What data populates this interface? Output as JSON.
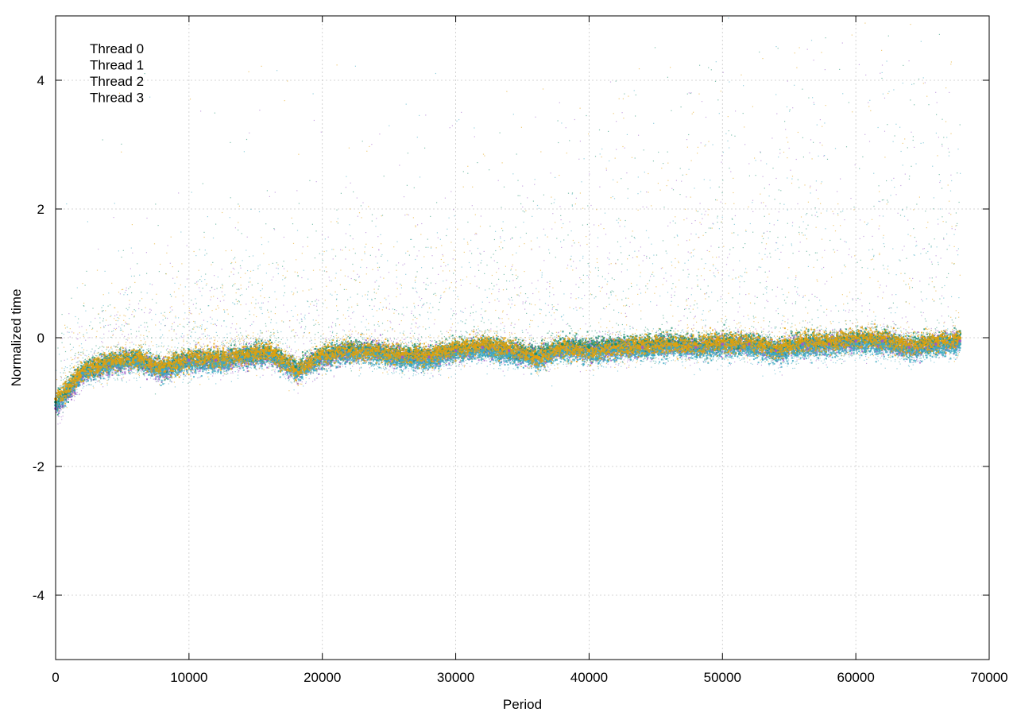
{
  "chart_data": {
    "type": "scatter",
    "title": "",
    "xlabel": "Period",
    "ylabel": "Normalized time",
    "xlim": [
      0,
      70000
    ],
    "ylim": [
      -5,
      5
    ],
    "x_ticks": [
      0,
      10000,
      20000,
      30000,
      40000,
      50000,
      60000,
      70000
    ],
    "x_tick_labels": [
      "0",
      "10000",
      "20000",
      "30000",
      "40000",
      "50000",
      "60000",
      "70000"
    ],
    "y_ticks": [
      -4,
      -2,
      0,
      2,
      4
    ],
    "y_tick_labels": [
      "-4",
      "-2",
      "0",
      "2",
      "4"
    ],
    "grid": true,
    "legend_position": "top-left",
    "series": [
      {
        "name": "Thread 0",
        "color": "#9a5cc9",
        "x": [
          0,
          2000,
          4000,
          6000,
          8000,
          10000,
          12000,
          14000,
          16000,
          18000,
          20000,
          22000,
          24000,
          26000,
          28000,
          30000,
          32000,
          34000,
          36000,
          38000,
          40000,
          42000,
          44000,
          46000,
          48000,
          50000,
          52000,
          54000,
          56000,
          58000,
          60000,
          62000,
          64000,
          66000,
          67800
        ],
        "y": [
          -1.1,
          -0.55,
          -0.4,
          -0.35,
          -0.5,
          -0.35,
          -0.35,
          -0.3,
          -0.25,
          -0.5,
          -0.3,
          -0.2,
          -0.2,
          -0.3,
          -0.3,
          -0.2,
          -0.15,
          -0.2,
          -0.3,
          -0.15,
          -0.2,
          -0.15,
          -0.15,
          -0.1,
          -0.15,
          -0.1,
          -0.1,
          -0.2,
          -0.1,
          -0.1,
          -0.05,
          -0.05,
          -0.15,
          -0.1,
          -0.05
        ]
      },
      {
        "name": "Thread 1",
        "color": "#1a8f6e",
        "x": [
          0,
          2000,
          4000,
          6000,
          8000,
          10000,
          12000,
          14000,
          16000,
          18000,
          20000,
          22000,
          24000,
          26000,
          28000,
          30000,
          32000,
          34000,
          36000,
          38000,
          40000,
          42000,
          44000,
          46000,
          48000,
          50000,
          52000,
          54000,
          56000,
          58000,
          60000,
          62000,
          64000,
          66000,
          67800
        ],
        "y": [
          -1.0,
          -0.5,
          -0.35,
          -0.3,
          -0.45,
          -0.3,
          -0.3,
          -0.25,
          -0.2,
          -0.45,
          -0.25,
          -0.15,
          -0.2,
          -0.25,
          -0.25,
          -0.15,
          -0.1,
          -0.15,
          -0.25,
          -0.1,
          -0.15,
          -0.1,
          -0.1,
          -0.05,
          -0.1,
          -0.05,
          -0.05,
          -0.15,
          -0.05,
          -0.05,
          0.0,
          0.0,
          -0.1,
          -0.05,
          0.0
        ]
      },
      {
        "name": "Thread 2",
        "color": "#3aa9c2",
        "x": [
          0,
          2000,
          4000,
          6000,
          8000,
          10000,
          12000,
          14000,
          16000,
          18000,
          20000,
          22000,
          24000,
          26000,
          28000,
          30000,
          32000,
          34000,
          36000,
          38000,
          40000,
          42000,
          44000,
          46000,
          48000,
          50000,
          52000,
          54000,
          56000,
          58000,
          60000,
          62000,
          64000,
          66000,
          67800
        ],
        "y": [
          -1.05,
          -0.55,
          -0.4,
          -0.35,
          -0.5,
          -0.4,
          -0.4,
          -0.3,
          -0.25,
          -0.55,
          -0.3,
          -0.25,
          -0.25,
          -0.35,
          -0.35,
          -0.25,
          -0.2,
          -0.25,
          -0.35,
          -0.2,
          -0.25,
          -0.2,
          -0.2,
          -0.15,
          -0.2,
          -0.15,
          -0.15,
          -0.25,
          -0.15,
          -0.15,
          -0.1,
          -0.1,
          -0.2,
          -0.15,
          -0.1
        ]
      },
      {
        "name": "Thread 3",
        "color": "#e3a10a",
        "x": [
          0,
          2000,
          4000,
          6000,
          8000,
          10000,
          12000,
          14000,
          16000,
          18000,
          20000,
          22000,
          24000,
          26000,
          28000,
          30000,
          32000,
          34000,
          36000,
          38000,
          40000,
          42000,
          44000,
          46000,
          48000,
          50000,
          52000,
          54000,
          56000,
          58000,
          60000,
          62000,
          64000,
          66000,
          67800
        ],
        "y": [
          -0.95,
          -0.5,
          -0.35,
          -0.3,
          -0.45,
          -0.3,
          -0.3,
          -0.25,
          -0.2,
          -0.5,
          -0.25,
          -0.2,
          -0.2,
          -0.25,
          -0.25,
          -0.15,
          -0.1,
          -0.15,
          -0.3,
          -0.15,
          -0.2,
          -0.15,
          -0.1,
          -0.1,
          -0.1,
          -0.05,
          -0.05,
          -0.15,
          -0.05,
          -0.05,
          0.0,
          0.0,
          -0.1,
          -0.05,
          0.0
        ]
      }
    ]
  }
}
